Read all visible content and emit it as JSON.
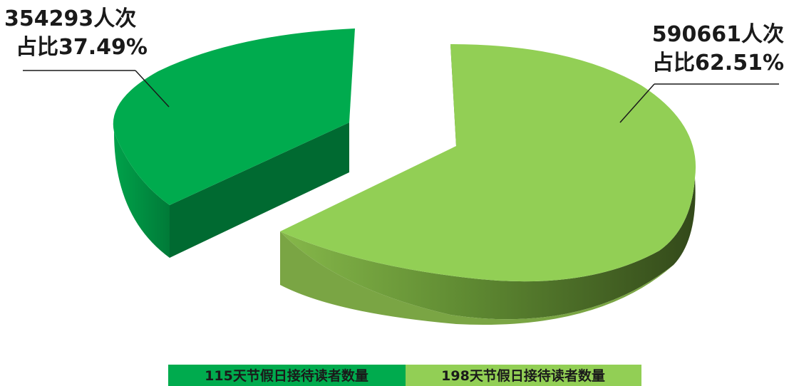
{
  "chart_data": {
    "type": "pie",
    "title": "",
    "slices": [
      {
        "name": "115天节假日接待读者数量",
        "value": 354293,
        "percent": 37.49,
        "label_value": "354293人次",
        "label_percent": "占比37.49%",
        "color_top": "#00ab4e",
        "color_side": "#00833c",
        "color_side_dark": "#006a31"
      },
      {
        "name": "198天节假日接待读者数量",
        "value": 590661,
        "percent": 62.51,
        "label_value": "590661人次",
        "label_percent": "占比62.51%",
        "color_top": "#92cf55",
        "color_side": "#6e9c3c",
        "color_side_dark": "#3d5a1e"
      }
    ],
    "legend_placement": "bottom",
    "style": "3d-exploded"
  }
}
